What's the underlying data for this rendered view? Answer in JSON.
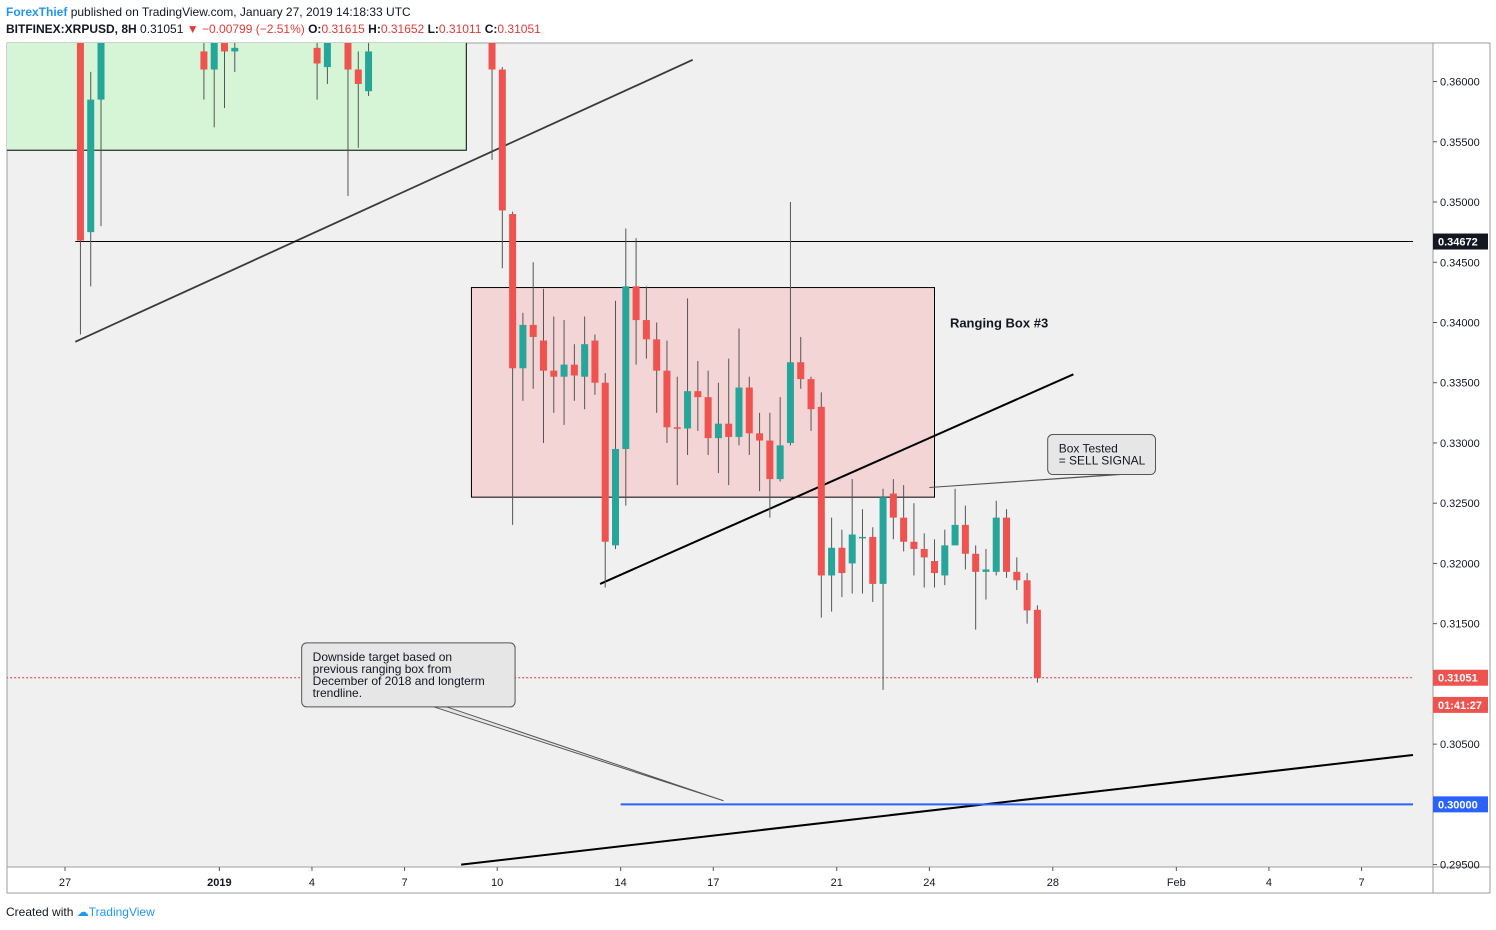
{
  "header": {
    "author": "ForexThief",
    "published_text": "published on TradingView.com, January 27, 2019 14:18:33 UTC",
    "symbol": "BITFINEX:XRPUSD, 8H",
    "last": "0.31051",
    "change": "−0.00799 (−2.51%)",
    "o_label": "O:",
    "o_value": "0.31615",
    "h_label": "H:",
    "h_value": "0.31652",
    "l_label": "L:",
    "l_value": "0.31011",
    "c_label": "C:",
    "c_value": "0.31051"
  },
  "footer": {
    "created_with": "Created with",
    "brand": "TradingView"
  },
  "colors": {
    "up": "#26a69a",
    "down": "#ef5350",
    "green_box": "#d5f5d6",
    "red_box": "#f3d5d5",
    "blue_line": "#2962ff",
    "bg": "#f0f0f0"
  },
  "chart_data": {
    "type": "candlestick",
    "ylim": [
      0.2948,
      0.3632
    ],
    "y_ticks": [
      "0.36000",
      "0.35500",
      "0.35000",
      "0.34500",
      "0.34000",
      "0.33500",
      "0.33000",
      "0.32500",
      "0.32000",
      "0.31500",
      "0.30500",
      "0.29500"
    ],
    "x_ticks": [
      {
        "label": "27",
        "x": 0
      },
      {
        "label": "2019",
        "x": 15
      },
      {
        "label": "4",
        "x": 24
      },
      {
        "label": "7",
        "x": 33
      },
      {
        "label": "10",
        "x": 42
      },
      {
        "label": "14",
        "x": 54
      },
      {
        "label": "17",
        "x": 63
      },
      {
        "label": "21",
        "x": 75
      },
      {
        "label": "24",
        "x": 84
      },
      {
        "label": "28",
        "x": 96
      },
      {
        "label": "Feb",
        "x": 108
      },
      {
        "label": "4",
        "x": 117
      },
      {
        "label": "7",
        "x": 126
      }
    ],
    "x_note": "x = index of 8-hour bar from Dec 27, 2018 00:00 UTC",
    "price_labels": [
      {
        "text": "0.34672",
        "value": 0.34672,
        "style": "black"
      },
      {
        "text": "0.31051",
        "value": 0.31051,
        "style": "red"
      },
      {
        "text": "01:41:27",
        "value": 0.30975,
        "style": "red"
      },
      {
        "text": "0.30000",
        "value": 0.3,
        "style": "blue"
      }
    ],
    "candles": [
      [
        1.5,
        0.3675,
        0.3468,
        0.3654,
        0.339
      ],
      [
        2.5,
        0.3475,
        0.3585,
        0.3608,
        0.343
      ],
      [
        3.5,
        0.3585,
        0.3715,
        0.373,
        0.348
      ],
      [
        13.5,
        0.3625,
        0.361,
        0.3635,
        0.3585
      ],
      [
        14.5,
        0.361,
        0.3635,
        0.3655,
        0.3562
      ],
      [
        15.5,
        0.3635,
        0.3625,
        0.365,
        0.3578
      ],
      [
        16.5,
        0.3625,
        0.3628,
        0.364,
        0.3608
      ],
      [
        24.5,
        0.3628,
        0.3615,
        0.3632,
        0.3585
      ],
      [
        25.5,
        0.3612,
        0.3635,
        0.3655,
        0.3598
      ],
      [
        27.5,
        0.364,
        0.361,
        0.366,
        0.3505
      ],
      [
        28.5,
        0.361,
        0.3598,
        0.3625,
        0.3545
      ],
      [
        29.5,
        0.3592,
        0.3625,
        0.3642,
        0.3588
      ],
      [
        41.5,
        0.3635,
        0.361,
        0.365,
        0.3535
      ],
      [
        42.5,
        0.361,
        0.3493,
        0.3612,
        0.3445
      ],
      [
        43.5,
        0.349,
        0.3362,
        0.3492,
        0.3232
      ],
      [
        44.5,
        0.3362,
        0.3398,
        0.3408,
        0.3335
      ],
      [
        45.5,
        0.3398,
        0.3388,
        0.345,
        0.3345
      ],
      [
        46.5,
        0.3385,
        0.336,
        0.3428,
        0.33
      ],
      [
        47.5,
        0.336,
        0.3355,
        0.3405,
        0.3325
      ],
      [
        48.5,
        0.3355,
        0.3365,
        0.3402,
        0.3315
      ],
      [
        49.5,
        0.3365,
        0.3356,
        0.3382,
        0.3335
      ],
      [
        50.5,
        0.3355,
        0.3382,
        0.3405,
        0.3328
      ],
      [
        51.5,
        0.3385,
        0.335,
        0.339,
        0.334
      ],
      [
        52.5,
        0.335,
        0.3218,
        0.3358,
        0.318
      ],
      [
        53.5,
        0.3215,
        0.3295,
        0.3418,
        0.3212
      ],
      [
        54.5,
        0.3295,
        0.343,
        0.3478,
        0.3248
      ],
      [
        55.5,
        0.343,
        0.3402,
        0.347,
        0.3365
      ],
      [
        56.5,
        0.3402,
        0.3386,
        0.343,
        0.337
      ],
      [
        57.5,
        0.3386,
        0.336,
        0.34,
        0.3325
      ],
      [
        58.5,
        0.336,
        0.3313,
        0.3385,
        0.33
      ],
      [
        59.5,
        0.3313,
        0.3312,
        0.3355,
        0.3265
      ],
      [
        60.5,
        0.3312,
        0.3343,
        0.342,
        0.329
      ],
      [
        61.5,
        0.3343,
        0.3338,
        0.3368,
        0.331
      ],
      [
        62.5,
        0.3338,
        0.3304,
        0.336,
        0.329
      ],
      [
        63.5,
        0.3304,
        0.3316,
        0.335,
        0.3275
      ],
      [
        64.5,
        0.3316,
        0.3305,
        0.337,
        0.3265
      ],
      [
        65.5,
        0.3305,
        0.3346,
        0.3395,
        0.3298
      ],
      [
        66.5,
        0.3346,
        0.3308,
        0.3355,
        0.329
      ],
      [
        67.5,
        0.3308,
        0.3302,
        0.3325,
        0.326
      ],
      [
        68.5,
        0.3302,
        0.327,
        0.3325,
        0.3238
      ],
      [
        69.5,
        0.327,
        0.3298,
        0.3338,
        0.3268
      ],
      [
        70.5,
        0.33,
        0.3367,
        0.35,
        0.3298
      ],
      [
        71.5,
        0.3367,
        0.3353,
        0.3388,
        0.3345
      ],
      [
        72.5,
        0.3353,
        0.3328,
        0.3355,
        0.331
      ],
      [
        73.5,
        0.333,
        0.319,
        0.3342,
        0.3155
      ],
      [
        74.5,
        0.319,
        0.3213,
        0.3238,
        0.316
      ],
      [
        75.5,
        0.3213,
        0.3192,
        0.3228,
        0.3172
      ],
      [
        76.5,
        0.32,
        0.3224,
        0.327,
        0.3175
      ],
      [
        77.5,
        0.3221,
        0.3222,
        0.3245,
        0.3175
      ],
      [
        78.5,
        0.3222,
        0.3183,
        0.323,
        0.3168
      ],
      [
        79.5,
        0.3183,
        0.3255,
        0.3262,
        0.3095
      ],
      [
        80.5,
        0.3258,
        0.3238,
        0.327,
        0.322
      ],
      [
        81.5,
        0.3238,
        0.3218,
        0.3265,
        0.321
      ],
      [
        82.5,
        0.3218,
        0.3212,
        0.325,
        0.319
      ],
      [
        83.5,
        0.3212,
        0.3205,
        0.3225,
        0.318
      ],
      [
        84.5,
        0.3202,
        0.3192,
        0.322,
        0.318
      ],
      [
        85.5,
        0.319,
        0.3215,
        0.3228,
        0.3182
      ],
      [
        86.5,
        0.3215,
        0.3232,
        0.3262,
        0.3215
      ],
      [
        87.5,
        0.3232,
        0.3208,
        0.3248,
        0.3195
      ],
      [
        88.5,
        0.3208,
        0.3193,
        0.3215,
        0.3145
      ],
      [
        89.5,
        0.3193,
        0.3195,
        0.3212,
        0.317
      ],
      [
        90.5,
        0.3193,
        0.3238,
        0.3252,
        0.319
      ],
      [
        91.5,
        0.3238,
        0.3193,
        0.3245,
        0.3188
      ],
      [
        92.5,
        0.3193,
        0.3186,
        0.3205,
        0.3178
      ],
      [
        93.5,
        0.3186,
        0.3161,
        0.3192,
        0.315
      ],
      [
        94.5,
        0.31615,
        0.31051,
        0.31652,
        0.31011
      ]
    ],
    "lines": [
      {
        "name": "old-trendline",
        "from": [
          1,
          0.3384
        ],
        "to": [
          61,
          0.3618
        ],
        "color": "#3a3a3a",
        "width": 1.8
      },
      {
        "name": "ranging-trendline",
        "from": [
          52,
          0.3183
        ],
        "to": [
          98,
          0.3357
        ],
        "color": "#000000",
        "width": 2
      },
      {
        "name": "longterm-trendline",
        "from": [
          38.5,
          0.295
        ],
        "to": [
          131,
          0.3041
        ],
        "color": "#000000",
        "width": 2
      },
      {
        "name": "resistance-line",
        "from": [
          1,
          0.34672
        ],
        "to": [
          131,
          0.34672
        ],
        "color": "#000000",
        "width": 1
      },
      {
        "name": "target-line",
        "from": [
          54,
          0.3
        ],
        "to": [
          131,
          0.3
        ],
        "color": "#2962ff",
        "width": 2
      },
      {
        "name": "last-price-line",
        "from": [
          -10,
          0.31051
        ],
        "to": [
          131,
          0.31051
        ],
        "color": "#e53935",
        "width": 1,
        "dash": true
      }
    ],
    "boxes": [
      {
        "name": "green-range-box",
        "x1": -10,
        "x2": 39,
        "y1": 0.3543,
        "y2": 0.364,
        "fill": "#d5f5d6",
        "stroke": "#000000"
      },
      {
        "name": "ranging-box-3",
        "x1": 39.5,
        "x2": 84.5,
        "y1": 0.3255,
        "y2": 0.3429,
        "fill": "#f3d5d5",
        "stroke": "#000000"
      }
    ],
    "annotations": [
      {
        "name": "ranging-box-label",
        "text": "Ranging Box #3",
        "x": 86,
        "y": 0.34
      },
      {
        "name": "box-tested-callout",
        "lines": [
          "Box Tested",
          "= SELL SIGNAL"
        ],
        "x": 95.5,
        "y": 0.3307,
        "pointer": [
          84,
          0.3263
        ]
      },
      {
        "name": "downside-target-callout",
        "lines": [
          "Downside target based on",
          "previous ranging box from",
          "December of 2018 and longterm",
          "trendline."
        ],
        "x": 23,
        "y": 0.3134,
        "pointer": [
          64,
          0.3003
        ]
      }
    ]
  }
}
